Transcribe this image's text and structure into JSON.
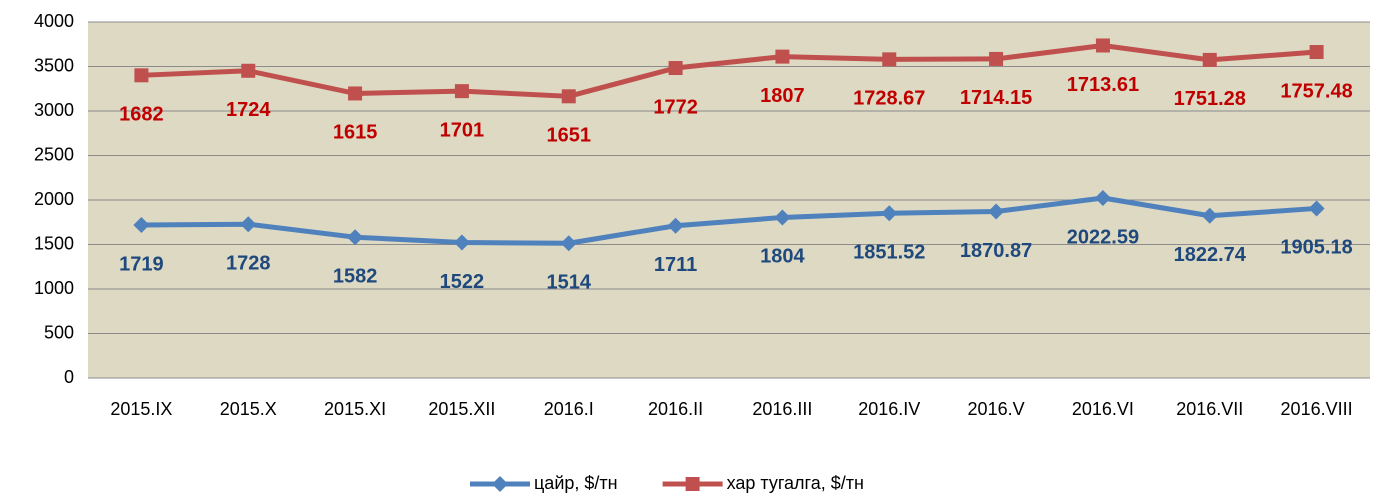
{
  "chart_data": {
    "type": "line",
    "stacked": true,
    "categories": [
      "2015.IX",
      "2015.X",
      "2015.XI",
      "2015.XII",
      "2016.I",
      "2016.II",
      "2016.III",
      "2016.IV",
      "2016.V",
      "2016.VI",
      "2016.VII",
      "2016.VIII"
    ],
    "series": [
      {
        "name": "цайр, $/тн",
        "color": "#4f81bd",
        "label_color": "#1f497d",
        "marker": "diamond",
        "values": [
          1719,
          1728,
          1582,
          1522,
          1514,
          1711,
          1804,
          1851.52,
          1870.87,
          2022.59,
          1822.74,
          1905.18
        ]
      },
      {
        "name": "хар тугалга, $/тн",
        "color": "#c0504d",
        "label_color": "#c00000",
        "marker": "square",
        "values": [
          1682,
          1724,
          1615,
          1701,
          1651,
          1772,
          1807,
          1728.67,
          1714.15,
          1713.61,
          1751.28,
          1757.48
        ]
      }
    ],
    "ylim": [
      0,
      4000
    ],
    "yticks": [
      0,
      500,
      1000,
      1500,
      2000,
      2500,
      3000,
      3500,
      4000
    ],
    "grid": true,
    "legend": "bottom",
    "plot_background": "#ddd9c3"
  }
}
